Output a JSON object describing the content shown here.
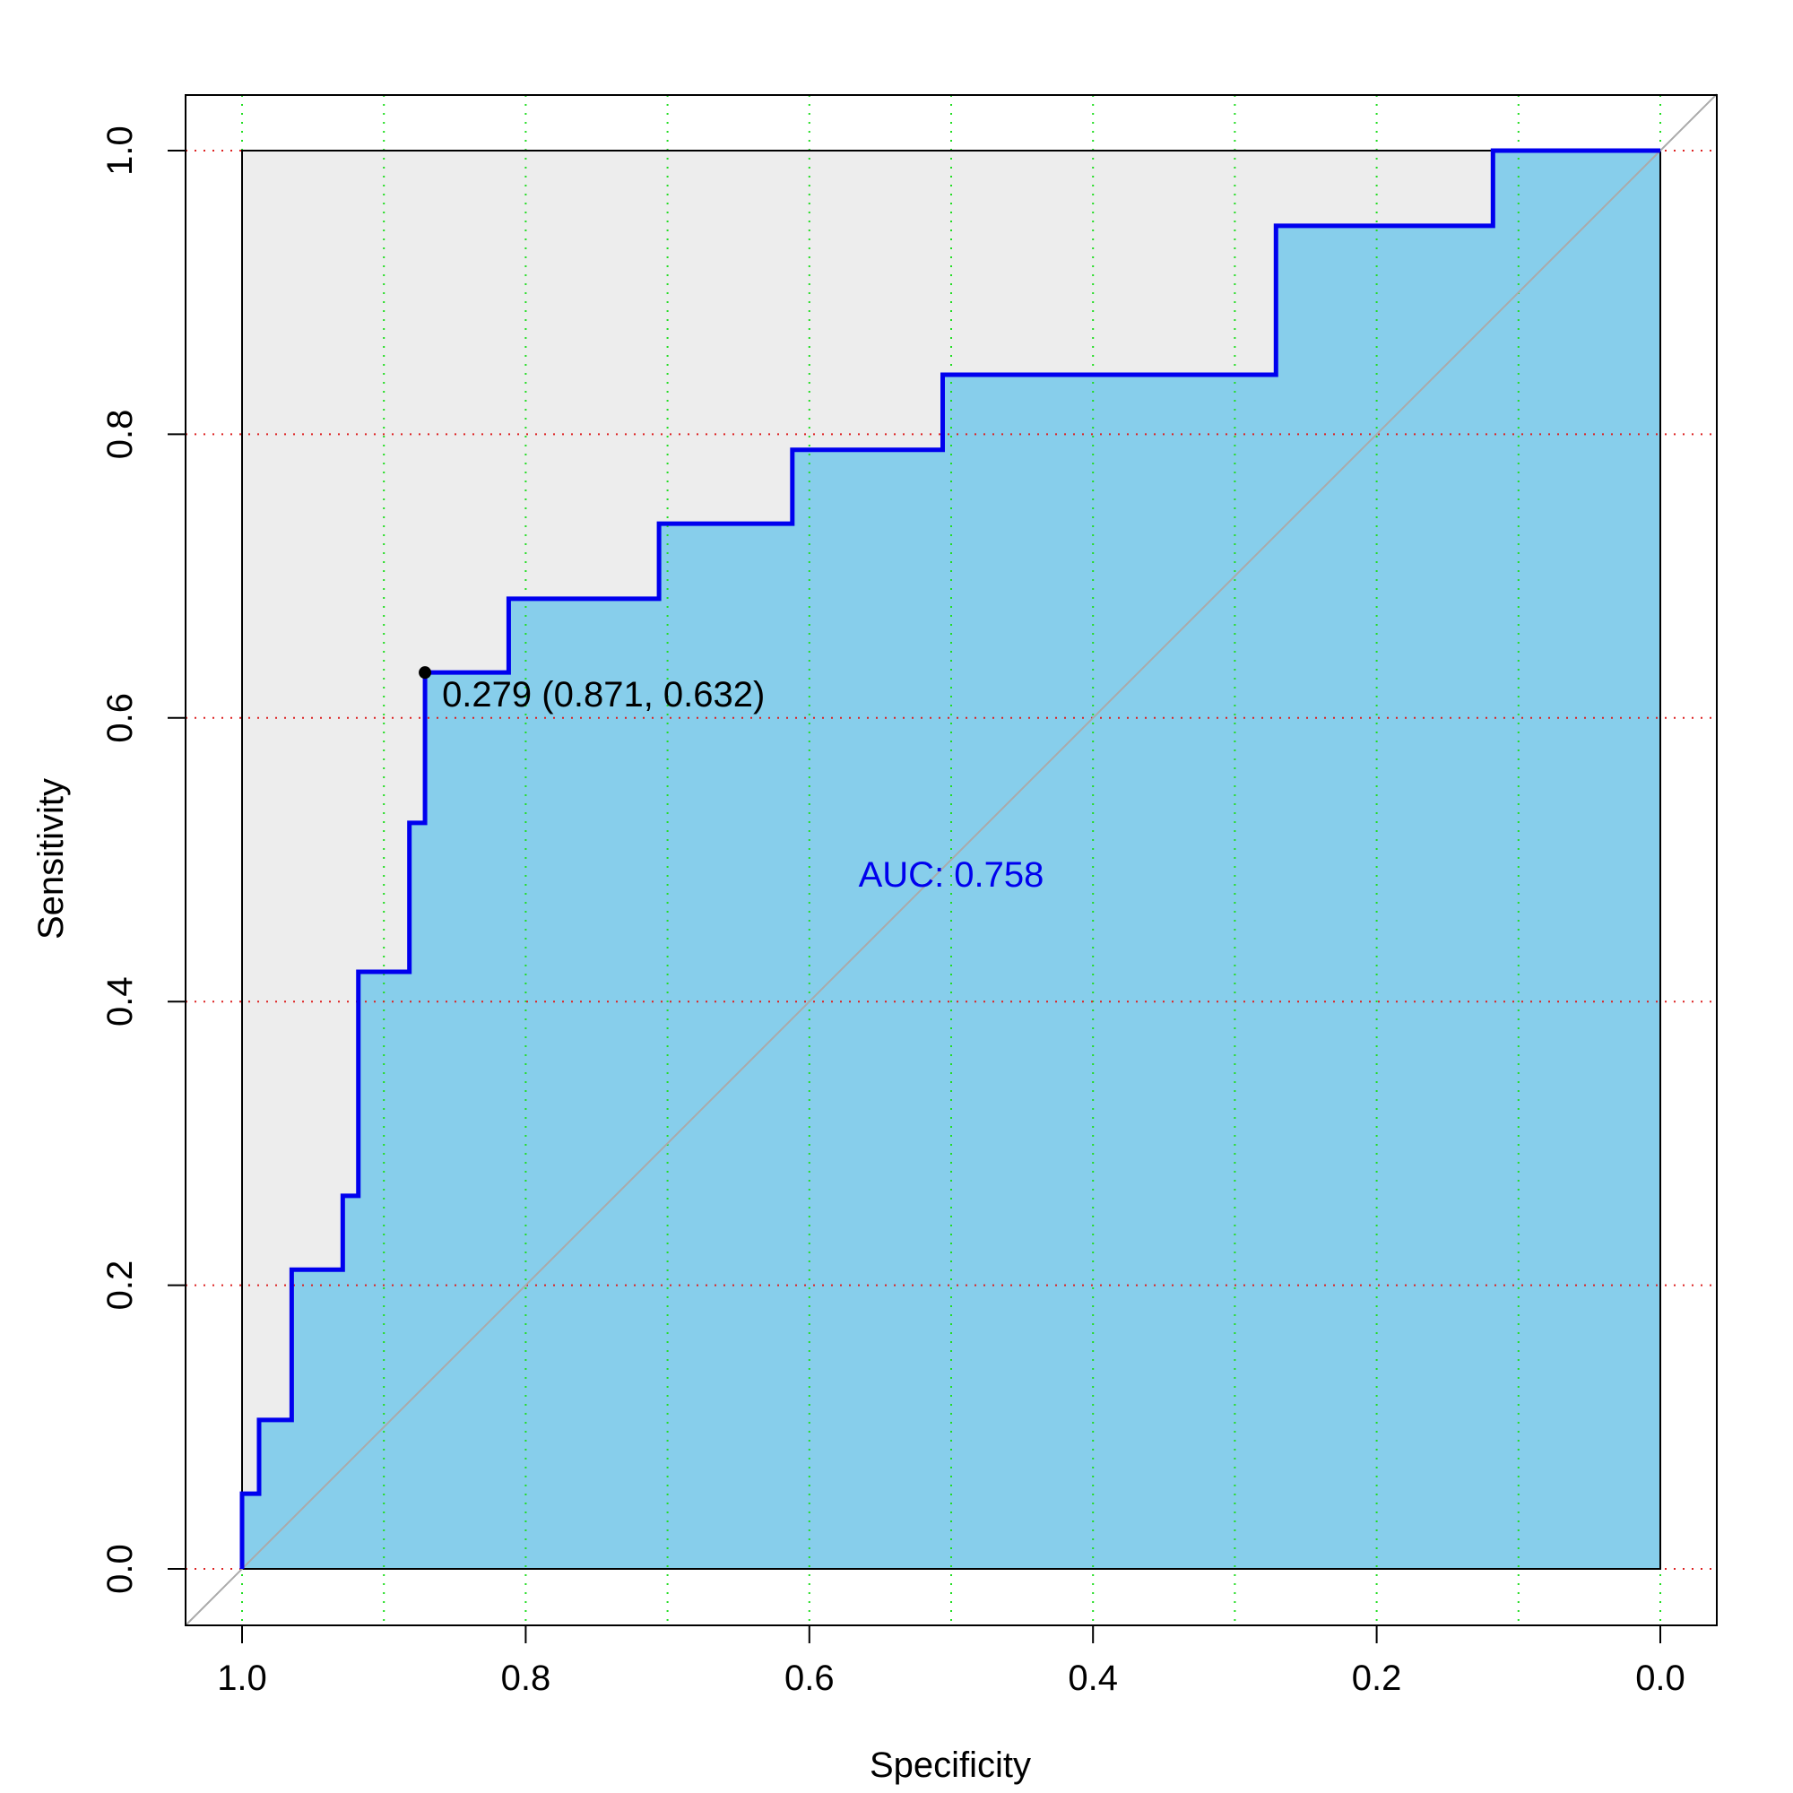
{
  "chart_data": {
    "type": "line",
    "title": "",
    "xlabel": "Specificity",
    "ylabel": "Sensitivity",
    "xlim": [
      1.0,
      0.0
    ],
    "ylim": [
      0.0,
      1.0
    ],
    "x_reversed": true,
    "x_ticks": [
      "1.0",
      "0.8",
      "0.6",
      "0.4",
      "0.2",
      "0.0"
    ],
    "x_tick_values": [
      1.0,
      0.8,
      0.6,
      0.4,
      0.2,
      0.0
    ],
    "y_ticks": [
      "0.0",
      "0.2",
      "0.4",
      "0.6",
      "0.8",
      "1.0"
    ],
    "y_tick_values": [
      0.0,
      0.2,
      0.4,
      0.6,
      0.8,
      1.0
    ],
    "grid": true,
    "grid_x_values": [
      1.0,
      0.9,
      0.8,
      0.7,
      0.6,
      0.5,
      0.4,
      0.3,
      0.2,
      0.1,
      0.0
    ],
    "grid_y_values": [
      0.0,
      0.2,
      0.4,
      0.6,
      0.8,
      1.0
    ],
    "series": [
      {
        "specificity": [
          1.0,
          1.0,
          0.988,
          0.988,
          0.965,
          0.965,
          0.929,
          0.929,
          0.918,
          0.918,
          0.882,
          0.882,
          0.871,
          0.871,
          0.812,
          0.812,
          0.706,
          0.706,
          0.612,
          0.612,
          0.506,
          0.506,
          0.271,
          0.271,
          0.118,
          0.118,
          0.0
        ],
        "sensitivity": [
          0.0,
          0.053,
          0.053,
          0.105,
          0.105,
          0.211,
          0.211,
          0.263,
          0.263,
          0.421,
          0.421,
          0.526,
          0.526,
          0.632,
          0.632,
          0.684,
          0.684,
          0.737,
          0.737,
          0.789,
          0.789,
          0.842,
          0.842,
          0.947,
          0.947,
          1.0,
          1.0
        ]
      }
    ],
    "reference_line": {
      "from": [
        1.0,
        0.0
      ],
      "to": [
        0.0,
        1.0
      ]
    },
    "best_threshold": {
      "specificity": 0.871,
      "sensitivity": 0.632,
      "label": "0.279 (0.871, 0.632)"
    },
    "auc_label": "AUC: 0.758",
    "auc_label_position": {
      "specificity": 0.5,
      "sensitivity": 0.49
    },
    "colors": {
      "curve": "#0000ee",
      "auc_fill": "#87ceeb",
      "max_auc_fill": "#ededed",
      "reference_line": "#aaaaaa",
      "grid_x": "#22dd22",
      "grid_y": "#dd2222",
      "auc_text": "#0000ee"
    }
  }
}
